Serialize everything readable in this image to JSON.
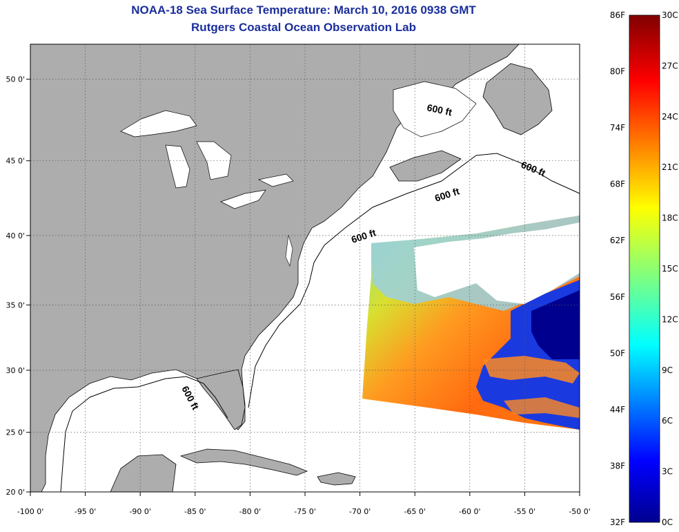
{
  "title": "NOAA-18 Sea Surface Temperature:  March 10, 2016 0938 GMT",
  "subtitle": "Rutgers Coastal Ocean Observation Lab",
  "map": {
    "lon_range": [
      -100,
      -50
    ],
    "lat_range": [
      20,
      52
    ],
    "lon_ticks": [
      {
        "value": -100,
        "label": "-100 0'"
      },
      {
        "value": -95,
        "label": "-95 0'"
      },
      {
        "value": -90,
        "label": "-90 0'"
      },
      {
        "value": -85,
        "label": "-85 0'"
      },
      {
        "value": -80,
        "label": "-80 0'"
      },
      {
        "value": -75,
        "label": "-75 0'"
      },
      {
        "value": -70,
        "label": "-70 0'"
      },
      {
        "value": -65,
        "label": "-65 0'"
      },
      {
        "value": -60,
        "label": "-60 0'"
      },
      {
        "value": -55,
        "label": "-55 0'"
      },
      {
        "value": -50,
        "label": "-50 0'"
      }
    ],
    "lat_ticks": [
      {
        "value": 50,
        "label": "50 0'"
      },
      {
        "value": 45,
        "label": "45 0'"
      },
      {
        "value": 40,
        "label": "40 0'"
      },
      {
        "value": 35,
        "label": "35 0'"
      },
      {
        "value": 30,
        "label": "30 0'"
      },
      {
        "value": 25,
        "label": "25 0'"
      },
      {
        "value": 20,
        "label": "20 0'"
      }
    ],
    "contour_labels": [
      "600 ft",
      "600 ft",
      "600 ft",
      "600 ft",
      "600 ft"
    ],
    "colors": {
      "land": "#adadad",
      "ocean": "#ffffff",
      "grid": "#555555"
    }
  },
  "colorbar": {
    "min_c": 0,
    "max_c": 30,
    "fahrenheit_labels": [
      "86F",
      "80F",
      "74F",
      "68F",
      "62F",
      "56F",
      "50F",
      "44F",
      "38F",
      "32F"
    ],
    "celsius_labels": [
      "30C",
      "27C",
      "24C",
      "21C",
      "18C",
      "15C",
      "12C",
      "9C",
      "6C",
      "3C",
      "0C"
    ],
    "colormap": "jet"
  }
}
